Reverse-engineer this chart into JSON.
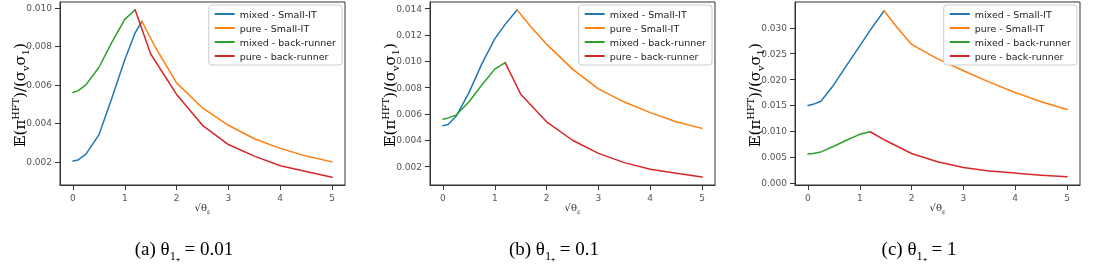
{
  "chart_data": [
    {
      "type": "line",
      "xlabel": "√θ$_{ε}$",
      "ylabel": "𝔼(π$^{HFT}$)/(σ$_{v}$σ$_{1}$)",
      "annotations": [
        "(a) θ$_{1₊}$ = 0.01"
      ],
      "legend": "top right",
      "grid": false,
      "marker": "none",
      "line_style": "solid",
      "xlim": [
        -0.25,
        5.25
      ],
      "xticks": [
        0,
        1,
        2,
        3,
        4,
        5
      ],
      "ylim": [
        0.0008,
        0.0103
      ],
      "yticks": [
        0.002,
        0.004,
        0.006,
        {
          "value": 0.01,
          "label": "0.010"
        },
        0.008
      ],
      "series": [
        {
          "name": "mixed - Small-IT",
          "color": "#1f77b4",
          "x": [
            0,
            0.1,
            0.25,
            0.4,
            0.5,
            0.75,
            1,
            1.2,
            1.33
          ],
          "values": [
            0.00205,
            0.0021,
            0.0024,
            0.003,
            0.0034,
            0.0053,
            0.0073,
            0.0087,
            0.0093
          ]
        },
        {
          "name": "pure - Small-IT",
          "color": "#ff7f0e",
          "x": [
            1.33,
            1.6,
            2,
            2.5,
            3,
            3.5,
            4,
            4.5,
            5
          ],
          "values": [
            0.0093,
            0.0079,
            0.0061,
            0.0048,
            0.0039,
            0.0032,
            0.0027,
            0.0023,
            0.002
          ]
        },
        {
          "name": "mixed - back-runner",
          "color": "#2ca02c",
          "x": [
            0,
            0.1,
            0.25,
            0.5,
            0.75,
            1,
            1.2
          ],
          "values": [
            0.0056,
            0.0057,
            0.006,
            0.0069,
            0.0082,
            0.0094,
            0.0099
          ]
        },
        {
          "name": "pure - back-runner",
          "color": "#d62728",
          "x": [
            1.2,
            1.5,
            2,
            2.5,
            3,
            3.5,
            4,
            4.5,
            5
          ],
          "values": [
            0.0099,
            0.0076,
            0.0055,
            0.0039,
            0.0029,
            0.0023,
            0.0018,
            0.0015,
            0.0012
          ]
        }
      ]
    },
    {
      "type": "line",
      "xlabel": "√θ$_{ε}$",
      "ylabel": "𝔼(π$^{HFT}$)/(σ$_{v}$σ$_{1}$)",
      "annotations": [
        "(b) θ$_{1₊}$ = 0.1"
      ],
      "legend": "top right",
      "grid": false,
      "marker": "none",
      "line_style": "solid",
      "xlim": [
        -0.25,
        5.25
      ],
      "xticks": [
        0,
        1,
        2,
        3,
        4,
        5
      ],
      "ylim": [
        0.0006,
        0.0145
      ],
      "yticks": [
        0.002,
        0.004,
        0.006,
        0.008,
        {
          "value": 0.01,
          "label": "0.010"
        },
        0.012,
        0.014
      ],
      "series": [
        {
          "name": "mixed - Small-IT",
          "color": "#1f77b4",
          "x": [
            0,
            0.1,
            0.25,
            0.5,
            0.75,
            1,
            1.2,
            1.43
          ],
          "values": [
            0.0051,
            0.0052,
            0.0058,
            0.0076,
            0.0098,
            0.0117,
            0.0128,
            0.0139
          ]
        },
        {
          "name": "pure - Small-IT",
          "color": "#ff7f0e",
          "x": [
            1.43,
            1.7,
            2,
            2.5,
            3,
            3.5,
            4,
            4.5,
            5
          ],
          "values": [
            0.0139,
            0.0126,
            0.0113,
            0.0094,
            0.0079,
            0.0069,
            0.0061,
            0.0054,
            0.0049
          ]
        },
        {
          "name": "mixed - back-runner",
          "color": "#2ca02c",
          "x": [
            0,
            0.1,
            0.25,
            0.5,
            0.75,
            1,
            1.2
          ],
          "values": [
            0.0056,
            0.0057,
            0.0059,
            0.0069,
            0.0082,
            0.0094,
            0.0099
          ]
        },
        {
          "name": "pure - back-runner",
          "color": "#d62728",
          "x": [
            1.2,
            1.5,
            2,
            2.5,
            3,
            3.5,
            4,
            4.5,
            5
          ],
          "values": [
            0.0099,
            0.0075,
            0.0054,
            0.004,
            0.003,
            0.0023,
            0.0018,
            0.0015,
            0.0012
          ]
        }
      ]
    },
    {
      "type": "line",
      "xlabel": "√θ$_{ε}$",
      "ylabel": "𝔼(π$^{HFT}$)/(σ$_{v}$σ$_{1}$)",
      "annotations": [
        "(c) θ$_{1₊}$ = 1"
      ],
      "legend": "top right",
      "grid": false,
      "marker": "none",
      "line_style": "solid",
      "xlim": [
        -0.25,
        5.25
      ],
      "xticks": [
        0,
        1,
        2,
        3,
        4,
        5
      ],
      "ylim": [
        -0.0004,
        0.035
      ],
      "yticks": [
        {
          "value": 0,
          "label": "0.000"
        },
        0.005,
        {
          "value": 0.01,
          "label": "0.010"
        },
        0.015,
        {
          "value": 0.02,
          "label": "0.020"
        },
        0.025,
        {
          "value": 0.03,
          "label": "0.030"
        }
      ],
      "series": [
        {
          "name": "mixed - Small-IT",
          "color": "#1f77b4",
          "x": [
            0,
            0.1,
            0.25,
            0.5,
            0.75,
            1,
            1.2,
            1.47
          ],
          "values": [
            0.015,
            0.0152,
            0.0158,
            0.019,
            0.0228,
            0.0265,
            0.0295,
            0.0333
          ]
        },
        {
          "name": "pure - Small-IT",
          "color": "#ff7f0e",
          "x": [
            1.47,
            1.7,
            2,
            2.5,
            3,
            3.5,
            4,
            4.5,
            5
          ],
          "values": [
            0.0333,
            0.0303,
            0.0268,
            0.024,
            0.0217,
            0.0195,
            0.0175,
            0.0157,
            0.0142
          ]
        },
        {
          "name": "mixed - back-runner",
          "color": "#2ca02c",
          "x": [
            0,
            0.1,
            0.25,
            0.5,
            0.75,
            1,
            1.2
          ],
          "values": [
            0.0056,
            0.0057,
            0.006,
            0.0071,
            0.0083,
            0.0094,
            0.0099
          ]
        },
        {
          "name": "pure - back-runner",
          "color": "#d62728",
          "x": [
            1.2,
            1.5,
            2,
            2.5,
            3,
            3.5,
            4,
            4.5,
            5
          ],
          "values": [
            0.0099,
            0.0082,
            0.0057,
            0.0041,
            0.003,
            0.0023,
            0.0019,
            0.0015,
            0.0012
          ]
        }
      ]
    }
  ]
}
